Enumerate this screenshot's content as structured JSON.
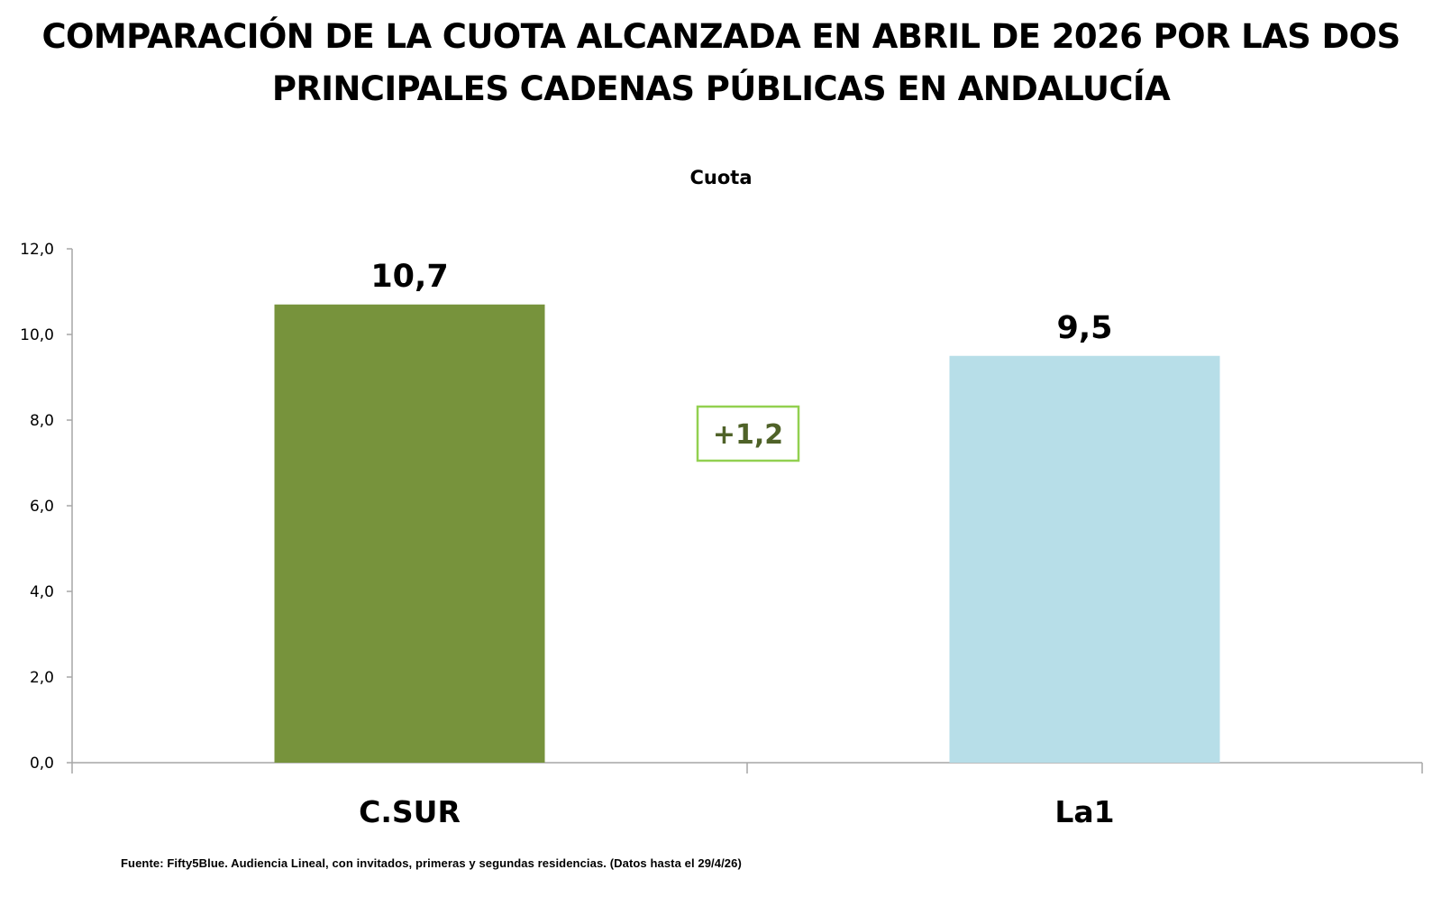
{
  "title": {
    "line1": "COMPARACIÓN DE LA CUOTA ALCANZADA EN ABRIL DE 2026 POR LAS DOS",
    "line2": "PRINCIPALES CADENAS PÚBLICAS EN ANDALUCÍA"
  },
  "source": "Fuente: Fifty5Blue. Audiencia Lineal, con invitados, primeras y segundas residencias. (Datos hasta el 29/4/26)",
  "difference_label": "+1,2",
  "colors": {
    "csur": "#77933c",
    "la1": "#b7dee8",
    "difference_border": "#92d050",
    "difference_text": "#4f6228",
    "axis": "#a6a6a6"
  },
  "chart_data": {
    "type": "bar",
    "title": "Cuota",
    "categories": [
      "C.SUR",
      "La1"
    ],
    "values": [
      10.7,
      9.5
    ],
    "value_labels": [
      "10,7",
      "9,5"
    ],
    "ylim": [
      0,
      12
    ],
    "yticks": [
      0,
      2,
      4,
      6,
      8,
      10,
      12
    ],
    "ytick_labels": [
      "0,0",
      "2,0",
      "4,0",
      "6,0",
      "8,0",
      "10,0",
      "12,0"
    ],
    "xlabel": "",
    "ylabel": "",
    "grid": false,
    "legend": "none"
  }
}
